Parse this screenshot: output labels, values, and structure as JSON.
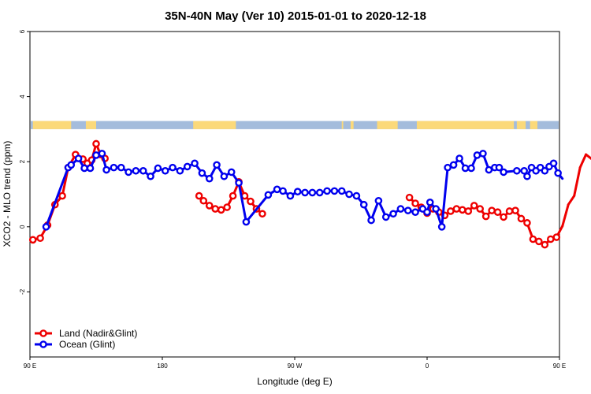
{
  "chart_data": {
    "type": "line",
    "title": "35N-40N May (Ver 10)   2015-01-01 to 2020-12-18",
    "xlabel": "Longitude (deg E)",
    "ylabel": "XCO2 - MLO trend (ppm)",
    "xlim": [
      90,
      450
    ],
    "ylim": [
      -4,
      6
    ],
    "x_ticks": [
      {
        "value": 90,
        "label": "90 E"
      },
      {
        "value": 180,
        "label": "180"
      },
      {
        "value": 270,
        "label": "90 W"
      },
      {
        "value": 360,
        "label": "0"
      },
      {
        "value": 450,
        "label": "90 E"
      },
      {
        "value": 540,
        "label": "180"
      }
    ],
    "y_ticks": [
      {
        "value": -2,
        "label": "-2"
      },
      {
        "value": 0,
        "label": "0"
      },
      {
        "value": 2,
        "label": "2"
      },
      {
        "value": 4,
        "label": "4"
      },
      {
        "value": 6,
        "label": "6"
      }
    ],
    "grid": false,
    "legend_position": "bottom-left",
    "land_ocean_strip": {
      "y_range": [
        3.0,
        3.25
      ],
      "ocean_color": "#a4bcdc",
      "land_color": "#fbd97a",
      "land_segments": [
        [
          92,
          118
        ],
        [
          128,
          135
        ],
        [
          201,
          230
        ],
        [
          302,
          303
        ],
        [
          308,
          310
        ],
        [
          326,
          340
        ],
        [
          353,
          360
        ],
        [
          360,
          419
        ],
        [
          421,
          427
        ],
        [
          430,
          435
        ],
        [
          452,
          478
        ],
        [
          488,
          494
        ],
        [
          504,
          506
        ]
      ]
    },
    "series": [
      {
        "name": "Land (Nadir&Glint)",
        "color": "#ee0000",
        "x": [
          92,
          97,
          102,
          107,
          112,
          116,
          121,
          126,
          129,
          132,
          135,
          138,
          141,
          205,
          208,
          212,
          216,
          220,
          224,
          228,
          232,
          236,
          240,
          244,
          248,
          348,
          352,
          356,
          360,
          364,
          368,
          372,
          376,
          380,
          384,
          388,
          392,
          396,
          400,
          404,
          408,
          412,
          416,
          420,
          424,
          428,
          432,
          436,
          440,
          444,
          448,
          452,
          456,
          460,
          464,
          468,
          472,
          476,
          480,
          484
        ],
        "y": [
          -0.4,
          -0.35,
          0.05,
          0.68,
          0.95,
          1.82,
          2.22,
          2.08,
          1.95,
          2.05,
          2.55,
          2.22,
          2.1,
          0.95,
          0.8,
          0.65,
          0.55,
          0.52,
          0.6,
          0.95,
          1.38,
          0.95,
          0.78,
          0.55,
          0.4,
          0.9,
          0.72,
          0.6,
          0.42,
          0.55,
          0.45,
          0.35,
          0.48,
          0.55,
          0.52,
          0.48,
          0.65,
          0.55,
          0.32,
          0.5,
          0.45,
          0.3,
          0.48,
          0.5,
          0.25,
          0.12,
          -0.38,
          -0.45,
          -0.55,
          -0.38,
          -0.32,
          0.02,
          0.68,
          0.95,
          1.82,
          2.22,
          2.08,
          1.95,
          2.05,
          2.55
        ]
      },
      {
        "name": "Ocean (Glint)",
        "color": "#0000ee",
        "x": [
          101,
          116,
          118,
          123,
          127,
          131,
          135,
          139,
          142,
          147,
          152,
          157,
          162,
          167,
          172,
          177,
          182,
          187,
          192,
          197,
          202,
          207,
          212,
          217,
          222,
          227,
          232,
          237,
          252,
          258,
          262,
          267,
          272,
          277,
          282,
          287,
          292,
          297,
          302,
          307,
          312,
          317,
          322,
          327,
          332,
          337,
          342,
          347,
          352,
          357,
          360,
          362,
          366,
          370,
          374,
          378,
          382,
          386,
          390,
          394,
          398,
          402,
          406,
          409,
          412,
          421,
          426,
          428,
          431,
          434,
          437,
          440,
          443,
          446,
          449,
          452
        ],
        "y": [
          0.0,
          1.82,
          1.9,
          2.1,
          1.8,
          1.8,
          2.2,
          2.25,
          1.75,
          1.82,
          1.82,
          1.68,
          1.72,
          1.72,
          1.55,
          1.8,
          1.72,
          1.82,
          1.72,
          1.85,
          1.95,
          1.65,
          1.48,
          1.9,
          1.55,
          1.68,
          1.35,
          0.15,
          0.98,
          1.15,
          1.1,
          0.95,
          1.08,
          1.05,
          1.05,
          1.05,
          1.1,
          1.1,
          1.1,
          1.0,
          0.95,
          0.68,
          0.2,
          0.8,
          0.3,
          0.4,
          0.55,
          0.5,
          0.45,
          0.55,
          0.45,
          0.75,
          0.55,
          0.0,
          1.82,
          1.9,
          2.1,
          1.8,
          1.8,
          2.2,
          2.25,
          1.75,
          1.82,
          1.82,
          1.68,
          1.72,
          1.72,
          1.55,
          1.82,
          1.72,
          1.82,
          1.72,
          1.85,
          1.95,
          1.65,
          1.48
        ]
      }
    ]
  }
}
